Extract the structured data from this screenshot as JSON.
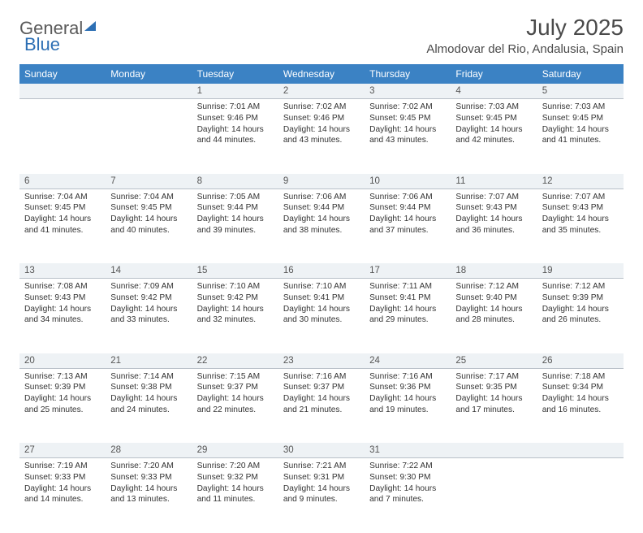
{
  "logo": {
    "part1": "General",
    "part2": "Blue"
  },
  "title": "July 2025",
  "location": "Almodovar del Rio, Andalusia, Spain",
  "weekdays": [
    "Sunday",
    "Monday",
    "Tuesday",
    "Wednesday",
    "Thursday",
    "Friday",
    "Saturday"
  ],
  "colors": {
    "header_bg": "#3b82c4",
    "header_text": "#ffffff",
    "daynum_bg": "#eef2f5",
    "daynum_border": "#b8c0c8",
    "text": "#333333",
    "logo_gray": "#5a5a5a",
    "logo_blue": "#2d6fb4"
  },
  "weeks": [
    [
      null,
      null,
      {
        "n": "1",
        "sr": "7:01 AM",
        "ss": "9:46 PM",
        "dl": "14 hours and 44 minutes."
      },
      {
        "n": "2",
        "sr": "7:02 AM",
        "ss": "9:46 PM",
        "dl": "14 hours and 43 minutes."
      },
      {
        "n": "3",
        "sr": "7:02 AM",
        "ss": "9:45 PM",
        "dl": "14 hours and 43 minutes."
      },
      {
        "n": "4",
        "sr": "7:03 AM",
        "ss": "9:45 PM",
        "dl": "14 hours and 42 minutes."
      },
      {
        "n": "5",
        "sr": "7:03 AM",
        "ss": "9:45 PM",
        "dl": "14 hours and 41 minutes."
      }
    ],
    [
      {
        "n": "6",
        "sr": "7:04 AM",
        "ss": "9:45 PM",
        "dl": "14 hours and 41 minutes."
      },
      {
        "n": "7",
        "sr": "7:04 AM",
        "ss": "9:45 PM",
        "dl": "14 hours and 40 minutes."
      },
      {
        "n": "8",
        "sr": "7:05 AM",
        "ss": "9:44 PM",
        "dl": "14 hours and 39 minutes."
      },
      {
        "n": "9",
        "sr": "7:06 AM",
        "ss": "9:44 PM",
        "dl": "14 hours and 38 minutes."
      },
      {
        "n": "10",
        "sr": "7:06 AM",
        "ss": "9:44 PM",
        "dl": "14 hours and 37 minutes."
      },
      {
        "n": "11",
        "sr": "7:07 AM",
        "ss": "9:43 PM",
        "dl": "14 hours and 36 minutes."
      },
      {
        "n": "12",
        "sr": "7:07 AM",
        "ss": "9:43 PM",
        "dl": "14 hours and 35 minutes."
      }
    ],
    [
      {
        "n": "13",
        "sr": "7:08 AM",
        "ss": "9:43 PM",
        "dl": "14 hours and 34 minutes."
      },
      {
        "n": "14",
        "sr": "7:09 AM",
        "ss": "9:42 PM",
        "dl": "14 hours and 33 minutes."
      },
      {
        "n": "15",
        "sr": "7:10 AM",
        "ss": "9:42 PM",
        "dl": "14 hours and 32 minutes."
      },
      {
        "n": "16",
        "sr": "7:10 AM",
        "ss": "9:41 PM",
        "dl": "14 hours and 30 minutes."
      },
      {
        "n": "17",
        "sr": "7:11 AM",
        "ss": "9:41 PM",
        "dl": "14 hours and 29 minutes."
      },
      {
        "n": "18",
        "sr": "7:12 AM",
        "ss": "9:40 PM",
        "dl": "14 hours and 28 minutes."
      },
      {
        "n": "19",
        "sr": "7:12 AM",
        "ss": "9:39 PM",
        "dl": "14 hours and 26 minutes."
      }
    ],
    [
      {
        "n": "20",
        "sr": "7:13 AM",
        "ss": "9:39 PM",
        "dl": "14 hours and 25 minutes."
      },
      {
        "n": "21",
        "sr": "7:14 AM",
        "ss": "9:38 PM",
        "dl": "14 hours and 24 minutes."
      },
      {
        "n": "22",
        "sr": "7:15 AM",
        "ss": "9:37 PM",
        "dl": "14 hours and 22 minutes."
      },
      {
        "n": "23",
        "sr": "7:16 AM",
        "ss": "9:37 PM",
        "dl": "14 hours and 21 minutes."
      },
      {
        "n": "24",
        "sr": "7:16 AM",
        "ss": "9:36 PM",
        "dl": "14 hours and 19 minutes."
      },
      {
        "n": "25",
        "sr": "7:17 AM",
        "ss": "9:35 PM",
        "dl": "14 hours and 17 minutes."
      },
      {
        "n": "26",
        "sr": "7:18 AM",
        "ss": "9:34 PM",
        "dl": "14 hours and 16 minutes."
      }
    ],
    [
      {
        "n": "27",
        "sr": "7:19 AM",
        "ss": "9:33 PM",
        "dl": "14 hours and 14 minutes."
      },
      {
        "n": "28",
        "sr": "7:20 AM",
        "ss": "9:33 PM",
        "dl": "14 hours and 13 minutes."
      },
      {
        "n": "29",
        "sr": "7:20 AM",
        "ss": "9:32 PM",
        "dl": "14 hours and 11 minutes."
      },
      {
        "n": "30",
        "sr": "7:21 AM",
        "ss": "9:31 PM",
        "dl": "14 hours and 9 minutes."
      },
      {
        "n": "31",
        "sr": "7:22 AM",
        "ss": "9:30 PM",
        "dl": "14 hours and 7 minutes."
      },
      null,
      null
    ]
  ],
  "labels": {
    "sunrise": "Sunrise:",
    "sunset": "Sunset:",
    "daylight": "Daylight:"
  }
}
